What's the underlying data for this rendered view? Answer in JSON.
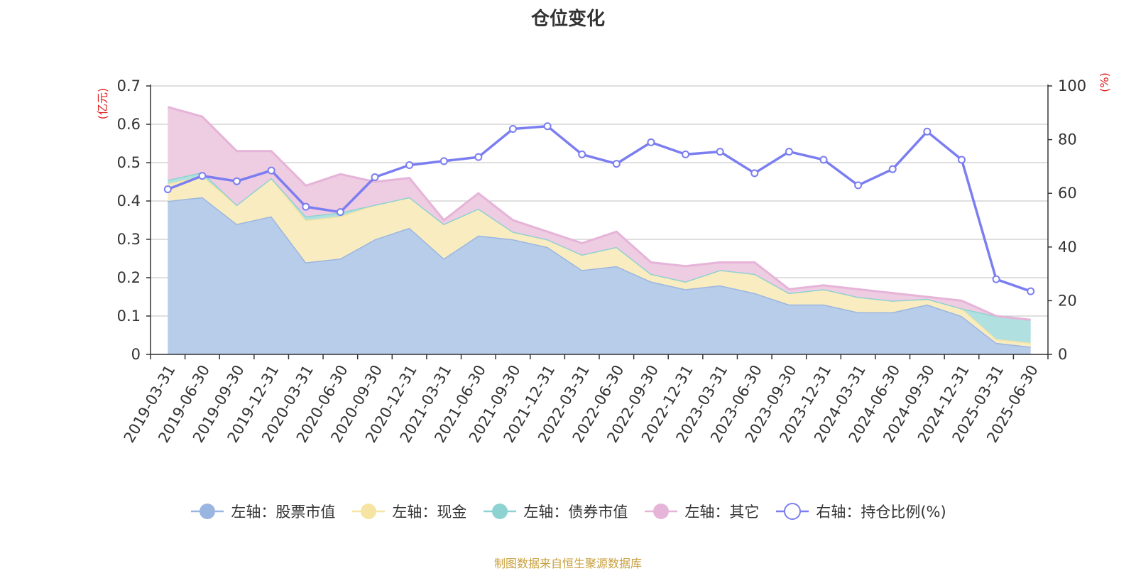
{
  "title": "仓位变化",
  "source": "制图数据来自恒生聚源数据库",
  "colors": {
    "stock": "#9ab6e0",
    "stock_fill": "#b8cdea",
    "cash": "#f6e4a2",
    "cash_fill": "#f9ecc0",
    "bond": "#8fd2d2",
    "bond_fill": "#b0e0e0",
    "other": "#e5b4d8",
    "other_fill": "#eecce2",
    "ratio": "#7b7ef0",
    "right_unit_color": "#e02020",
    "grid": "#cccccc",
    "axis": "#333333"
  },
  "chart_data": {
    "type": "area",
    "left_axis_unit": "(亿元)",
    "right_axis_unit": "(%)",
    "left_ylim": [
      0,
      0.7
    ],
    "left_ticks": [
      "0",
      "0.1",
      "0.2",
      "0.3",
      "0.4",
      "0.5",
      "0.6",
      "0.7"
    ],
    "right_ylim": [
      0,
      100
    ],
    "right_ticks": [
      "0",
      "20",
      "40",
      "60",
      "80",
      "100"
    ],
    "grid": true,
    "legend_position": "bottom",
    "categories": [
      "2019-03-31",
      "2019-06-30",
      "2019-09-30",
      "2019-12-31",
      "2020-03-31",
      "2020-06-30",
      "2020-09-30",
      "2020-12-31",
      "2021-03-31",
      "2021-06-30",
      "2021-09-30",
      "2021-12-31",
      "2022-03-31",
      "2022-06-30",
      "2022-09-30",
      "2022-12-31",
      "2023-03-31",
      "2023-06-30",
      "2023-09-30",
      "2023-12-31",
      "2024-03-31",
      "2024-06-30",
      "2024-09-30",
      "2024-12-31",
      "2025-03-31",
      "2025-06-30"
    ],
    "series": [
      {
        "key": "stock",
        "name": "左轴：股票市值",
        "axis": "left",
        "stacked": true,
        "values": [
          0.4,
          0.41,
          0.34,
          0.36,
          0.24,
          0.25,
          0.3,
          0.33,
          0.25,
          0.31,
          0.3,
          0.28,
          0.22,
          0.23,
          0.19,
          0.17,
          0.18,
          0.16,
          0.13,
          0.13,
          0.11,
          0.11,
          0.13,
          0.1,
          0.03,
          0.02
        ]
      },
      {
        "key": "cash",
        "name": "左轴：现金",
        "axis": "left",
        "stacked": true,
        "values": [
          0.045,
          0.055,
          0.05,
          0.1,
          0.11,
          0.11,
          0.09,
          0.08,
          0.09,
          0.07,
          0.02,
          0.02,
          0.04,
          0.05,
          0.02,
          0.02,
          0.04,
          0.05,
          0.03,
          0.04,
          0.04,
          0.03,
          0.015,
          0.02,
          0.01,
          0.01
        ]
      },
      {
        "key": "bond",
        "name": "左轴：债券市值",
        "axis": "left",
        "stacked": true,
        "values": [
          0.01,
          0.01,
          0,
          0,
          0.01,
          0.01,
          0,
          0,
          0,
          0,
          0,
          0,
          0,
          0,
          0,
          0,
          0,
          0,
          0,
          0,
          0,
          0,
          0,
          0,
          0.06,
          0.06
        ]
      },
      {
        "key": "other",
        "name": "左轴：其它",
        "axis": "left",
        "stacked": true,
        "values": [
          0.19,
          0.145,
          0.14,
          0.07,
          0.08,
          0.1,
          0.06,
          0.05,
          0.01,
          0.04,
          0.03,
          0.02,
          0.03,
          0.04,
          0.03,
          0.04,
          0.02,
          0.03,
          0.01,
          0.01,
          0.02,
          0.02,
          0.005,
          0.02,
          0,
          0
        ]
      },
      {
        "key": "ratio",
        "name": "右轴：持仓比例(%)",
        "axis": "right",
        "stacked": false,
        "values": [
          61.5,
          66.5,
          64.5,
          68.5,
          55,
          53,
          66,
          70.5,
          72,
          73.5,
          84,
          85,
          74.5,
          71,
          79,
          74.5,
          75.5,
          67.5,
          75.5,
          72.5,
          63,
          69,
          83,
          72.5,
          28,
          23.5
        ]
      }
    ]
  }
}
